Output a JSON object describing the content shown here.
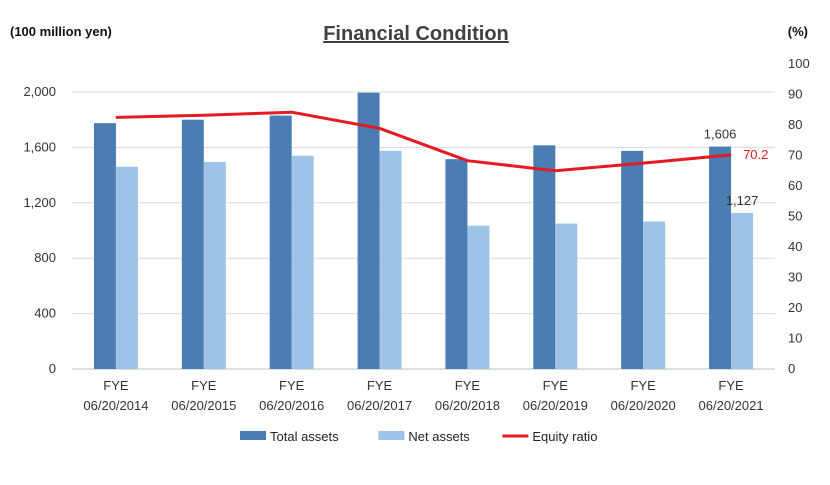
{
  "chart_data": {
    "type": "bar",
    "title": "Financial Condition",
    "left_unit": "(100 million yen)",
    "right_unit": "(%)",
    "categories": [
      [
        "FYE",
        "06/20/2014"
      ],
      [
        "FYE",
        "06/20/2015"
      ],
      [
        "FYE",
        "06/20/2016"
      ],
      [
        "FYE",
        "06/20/2017"
      ],
      [
        "FYE",
        "06/20/2018"
      ],
      [
        "FYE",
        "06/20/2019"
      ],
      [
        "FYE",
        "06/20/2020"
      ],
      [
        "FYE",
        "06/20/2021"
      ]
    ],
    "y_left": {
      "min": 0,
      "max": 2000,
      "ticks": [
        0,
        400,
        800,
        1200,
        1600,
        2000
      ],
      "tick_labels": [
        "0",
        "400",
        "800",
        "1,200",
        "1,600",
        "2,000"
      ]
    },
    "y_right": {
      "min": 0,
      "max": 100,
      "ticks": [
        0,
        10,
        20,
        30,
        40,
        50,
        60,
        70,
        80,
        90,
        100
      ],
      "tick_labels": [
        "0",
        "10",
        "20",
        "30",
        "40",
        "50",
        "60",
        "70",
        "80",
        "90",
        "100"
      ]
    },
    "series": [
      {
        "name": "Total assets",
        "type": "bar",
        "axis": "left",
        "color": "#4a7eb3",
        "values": [
          1775,
          1800,
          1830,
          1995,
          1515,
          1615,
          1575,
          1606
        ]
      },
      {
        "name": "Net assets",
        "type": "bar",
        "axis": "left",
        "color": "#9dc3e6",
        "values": [
          1460,
          1495,
          1540,
          1575,
          1035,
          1050,
          1065,
          1127
        ]
      },
      {
        "name": "Equity ratio",
        "type": "line",
        "axis": "right",
        "color": "#e31b23",
        "values": [
          82.5,
          83.2,
          84.2,
          78.9,
          68.3,
          65.0,
          67.5,
          70.2
        ]
      }
    ],
    "data_labels": [
      {
        "series": "Total assets",
        "index": 7,
        "text": "1,606"
      },
      {
        "series": "Net assets",
        "index": 7,
        "text": "1,127"
      },
      {
        "series": "Equity ratio",
        "index": 7,
        "text": "70.2"
      }
    ],
    "grid": true,
    "legend_position": "bottom"
  }
}
